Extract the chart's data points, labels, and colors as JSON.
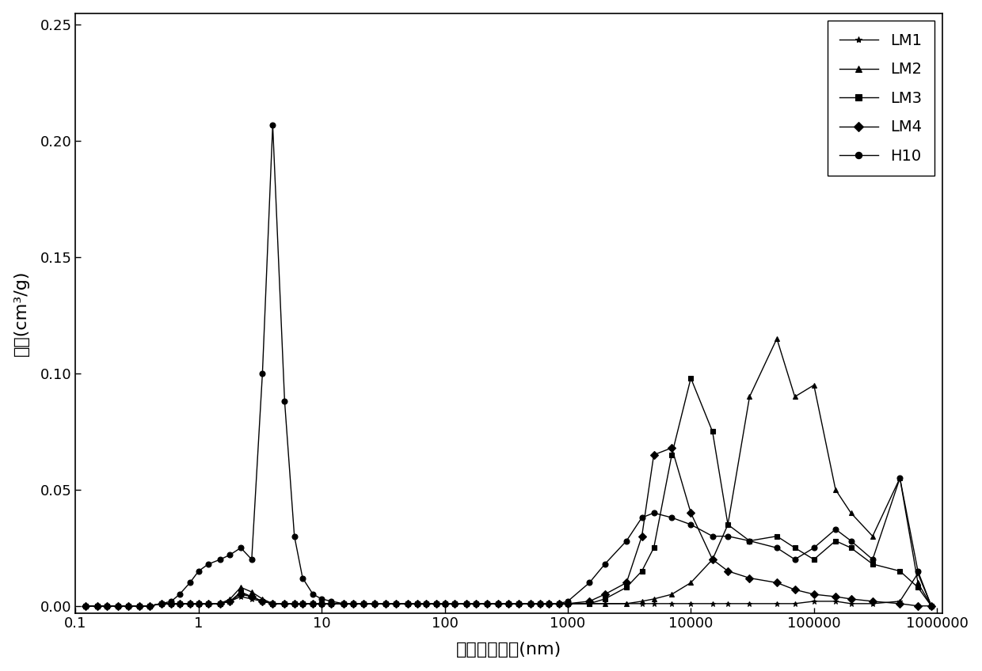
{
  "xlabel": "页岔孔径分布(nm)",
  "ylabel": "孔容(cm³/g)",
  "background_color": "#ffffff",
  "line_color": "#000000",
  "ylim": [
    -0.003,
    0.255
  ],
  "yticks": [
    0.0,
    0.05,
    0.1,
    0.15,
    0.2,
    0.25
  ],
  "ytick_labels": [
    "0.00",
    "0.05",
    "0.10",
    "0.15",
    "0.20",
    "0.25"
  ],
  "xtick_positions": [
    0.1,
    1,
    10,
    100,
    1000,
    10000,
    100000,
    1000000
  ],
  "xtick_labels": [
    "0.1",
    "1",
    "10",
    "100",
    "1000",
    "10000",
    "100000",
    "1000000"
  ],
  "legend_order": [
    "LM1",
    "LM2",
    "LM3",
    "LM4",
    "H10"
  ],
  "markers": {
    "LM1": "*",
    "LM2": "^",
    "LM3": "s",
    "LM4": "D",
    "H10": "o"
  },
  "LM1_x": [
    0.12,
    0.15,
    0.18,
    0.22,
    0.27,
    0.33,
    0.4,
    0.5,
    0.6,
    0.7,
    0.85,
    1.0,
    1.2,
    1.5,
    1.8,
    2.2,
    2.7,
    3.3,
    4.0,
    5.0,
    6.0,
    7.0,
    8.5,
    10.0,
    12.0,
    15.0,
    18.0,
    22.0,
    27.0,
    33.0,
    40.0,
    50.0,
    60.0,
    70.0,
    85.0,
    100.0,
    120.0,
    150.0,
    180.0,
    220.0,
    270.0,
    330.0,
    400.0,
    500.0,
    600.0,
    700.0,
    850.0,
    1000.0,
    1500.0,
    2000.0,
    3000.0,
    4000.0,
    5000.0,
    7000.0,
    10000.0,
    15000.0,
    20000.0,
    30000.0,
    50000.0,
    70000.0,
    100000.0,
    150000.0,
    200000.0,
    300000.0,
    500000.0,
    700000.0,
    900000.0
  ],
  "LM1_y": [
    0.0,
    0.0,
    0.0,
    0.0,
    0.0,
    0.0,
    0.0,
    0.001,
    0.001,
    0.001,
    0.001,
    0.001,
    0.001,
    0.001,
    0.002,
    0.004,
    0.003,
    0.002,
    0.001,
    0.001,
    0.001,
    0.001,
    0.001,
    0.001,
    0.001,
    0.001,
    0.001,
    0.001,
    0.001,
    0.001,
    0.001,
    0.001,
    0.001,
    0.001,
    0.001,
    0.001,
    0.001,
    0.001,
    0.001,
    0.001,
    0.001,
    0.001,
    0.001,
    0.001,
    0.001,
    0.001,
    0.001,
    0.001,
    0.001,
    0.001,
    0.001,
    0.001,
    0.001,
    0.001,
    0.001,
    0.001,
    0.001,
    0.001,
    0.001,
    0.001,
    0.002,
    0.002,
    0.001,
    0.001,
    0.002,
    0.014,
    0.0
  ],
  "LM2_x": [
    0.12,
    0.15,
    0.18,
    0.22,
    0.27,
    0.33,
    0.4,
    0.5,
    0.6,
    0.7,
    0.85,
    1.0,
    1.2,
    1.5,
    1.8,
    2.2,
    2.7,
    3.3,
    4.0,
    5.0,
    6.0,
    7.0,
    8.5,
    10.0,
    12.0,
    15.0,
    18.0,
    22.0,
    27.0,
    33.0,
    40.0,
    50.0,
    60.0,
    70.0,
    85.0,
    100.0,
    120.0,
    150.0,
    180.0,
    220.0,
    270.0,
    330.0,
    400.0,
    500.0,
    600.0,
    700.0,
    850.0,
    1000.0,
    1500.0,
    2000.0,
    3000.0,
    4000.0,
    5000.0,
    7000.0,
    10000.0,
    15000.0,
    20000.0,
    30000.0,
    50000.0,
    70000.0,
    100000.0,
    150000.0,
    200000.0,
    300000.0,
    500000.0,
    700000.0,
    900000.0
  ],
  "LM2_y": [
    0.0,
    0.0,
    0.0,
    0.0,
    0.0,
    0.0,
    0.0,
    0.001,
    0.001,
    0.001,
    0.001,
    0.001,
    0.001,
    0.001,
    0.003,
    0.008,
    0.006,
    0.003,
    0.001,
    0.001,
    0.001,
    0.001,
    0.001,
    0.001,
    0.001,
    0.001,
    0.001,
    0.001,
    0.001,
    0.001,
    0.001,
    0.001,
    0.001,
    0.001,
    0.001,
    0.001,
    0.001,
    0.001,
    0.001,
    0.001,
    0.001,
    0.001,
    0.001,
    0.001,
    0.001,
    0.001,
    0.001,
    0.001,
    0.001,
    0.001,
    0.001,
    0.002,
    0.003,
    0.005,
    0.01,
    0.02,
    0.035,
    0.09,
    0.115,
    0.09,
    0.095,
    0.05,
    0.04,
    0.03,
    0.055,
    0.01,
    0.0
  ],
  "LM3_x": [
    0.12,
    0.15,
    0.18,
    0.22,
    0.27,
    0.33,
    0.4,
    0.5,
    0.6,
    0.7,
    0.85,
    1.0,
    1.2,
    1.5,
    1.8,
    2.2,
    2.7,
    3.3,
    4.0,
    5.0,
    6.0,
    7.0,
    8.5,
    10.0,
    12.0,
    15.0,
    18.0,
    22.0,
    27.0,
    33.0,
    40.0,
    50.0,
    60.0,
    70.0,
    85.0,
    100.0,
    120.0,
    150.0,
    180.0,
    220.0,
    270.0,
    330.0,
    400.0,
    500.0,
    600.0,
    700.0,
    850.0,
    1000.0,
    1500.0,
    2000.0,
    3000.0,
    4000.0,
    5000.0,
    7000.0,
    10000.0,
    15000.0,
    20000.0,
    30000.0,
    50000.0,
    70000.0,
    100000.0,
    150000.0,
    200000.0,
    300000.0,
    500000.0,
    700000.0,
    900000.0
  ],
  "LM3_y": [
    0.0,
    0.0,
    0.0,
    0.0,
    0.0,
    0.0,
    0.0,
    0.001,
    0.001,
    0.001,
    0.001,
    0.001,
    0.001,
    0.001,
    0.002,
    0.006,
    0.004,
    0.002,
    0.001,
    0.001,
    0.001,
    0.001,
    0.001,
    0.001,
    0.001,
    0.001,
    0.001,
    0.001,
    0.001,
    0.001,
    0.001,
    0.001,
    0.001,
    0.001,
    0.001,
    0.001,
    0.001,
    0.001,
    0.001,
    0.001,
    0.001,
    0.001,
    0.001,
    0.001,
    0.001,
    0.001,
    0.001,
    0.001,
    0.001,
    0.003,
    0.008,
    0.015,
    0.025,
    0.065,
    0.098,
    0.075,
    0.035,
    0.028,
    0.03,
    0.025,
    0.02,
    0.028,
    0.025,
    0.018,
    0.015,
    0.008,
    0.0
  ],
  "LM4_x": [
    0.12,
    0.15,
    0.18,
    0.22,
    0.27,
    0.33,
    0.4,
    0.5,
    0.6,
    0.7,
    0.85,
    1.0,
    1.2,
    1.5,
    1.8,
    2.2,
    2.7,
    3.3,
    4.0,
    5.0,
    6.0,
    7.0,
    8.5,
    10.0,
    12.0,
    15.0,
    18.0,
    22.0,
    27.0,
    33.0,
    40.0,
    50.0,
    60.0,
    70.0,
    85.0,
    100.0,
    120.0,
    150.0,
    180.0,
    220.0,
    270.0,
    330.0,
    400.0,
    500.0,
    600.0,
    700.0,
    850.0,
    1000.0,
    1500.0,
    2000.0,
    3000.0,
    4000.0,
    5000.0,
    7000.0,
    10000.0,
    15000.0,
    20000.0,
    30000.0,
    50000.0,
    70000.0,
    100000.0,
    150000.0,
    200000.0,
    300000.0,
    500000.0,
    700000.0,
    900000.0
  ],
  "LM4_y": [
    0.0,
    0.0,
    0.0,
    0.0,
    0.0,
    0.0,
    0.0,
    0.001,
    0.001,
    0.001,
    0.001,
    0.001,
    0.001,
    0.001,
    0.002,
    0.005,
    0.004,
    0.002,
    0.001,
    0.001,
    0.001,
    0.001,
    0.001,
    0.001,
    0.001,
    0.001,
    0.001,
    0.001,
    0.001,
    0.001,
    0.001,
    0.001,
    0.001,
    0.001,
    0.001,
    0.001,
    0.001,
    0.001,
    0.001,
    0.001,
    0.001,
    0.001,
    0.001,
    0.001,
    0.001,
    0.001,
    0.001,
    0.001,
    0.002,
    0.005,
    0.01,
    0.03,
    0.065,
    0.068,
    0.04,
    0.02,
    0.015,
    0.012,
    0.01,
    0.007,
    0.005,
    0.004,
    0.003,
    0.002,
    0.001,
    0.0,
    0.0
  ],
  "H10_x": [
    0.12,
    0.15,
    0.18,
    0.22,
    0.27,
    0.33,
    0.4,
    0.5,
    0.6,
    0.7,
    0.85,
    1.0,
    1.2,
    1.5,
    1.8,
    2.2,
    2.7,
    3.3,
    4.0,
    5.0,
    6.0,
    7.0,
    8.5,
    10.0,
    12.0,
    15.0,
    18.0,
    22.0,
    27.0,
    33.0,
    40.0,
    50.0,
    60.0,
    70.0,
    85.0,
    100.0,
    120.0,
    150.0,
    180.0,
    220.0,
    270.0,
    330.0,
    400.0,
    500.0,
    600.0,
    700.0,
    850.0,
    1000.0,
    1500.0,
    2000.0,
    3000.0,
    4000.0,
    5000.0,
    7000.0,
    10000.0,
    15000.0,
    20000.0,
    30000.0,
    50000.0,
    70000.0,
    100000.0,
    150000.0,
    200000.0,
    300000.0,
    500000.0,
    700000.0,
    900000.0
  ],
  "H10_y": [
    0.0,
    0.0,
    0.0,
    0.0,
    0.0,
    0.0,
    0.0,
    0.001,
    0.002,
    0.005,
    0.01,
    0.015,
    0.018,
    0.02,
    0.022,
    0.025,
    0.02,
    0.1,
    0.207,
    0.088,
    0.03,
    0.012,
    0.005,
    0.003,
    0.002,
    0.001,
    0.001,
    0.001,
    0.001,
    0.001,
    0.001,
    0.001,
    0.001,
    0.001,
    0.001,
    0.001,
    0.001,
    0.001,
    0.001,
    0.001,
    0.001,
    0.001,
    0.001,
    0.001,
    0.001,
    0.001,
    0.001,
    0.002,
    0.01,
    0.018,
    0.028,
    0.038,
    0.04,
    0.038,
    0.035,
    0.03,
    0.03,
    0.028,
    0.025,
    0.02,
    0.025,
    0.033,
    0.028,
    0.02,
    0.055,
    0.015,
    0.0
  ],
  "fontsize_label": 16,
  "fontsize_tick": 13,
  "fontsize_legend": 14,
  "markersize": 5,
  "linewidth": 1.0
}
